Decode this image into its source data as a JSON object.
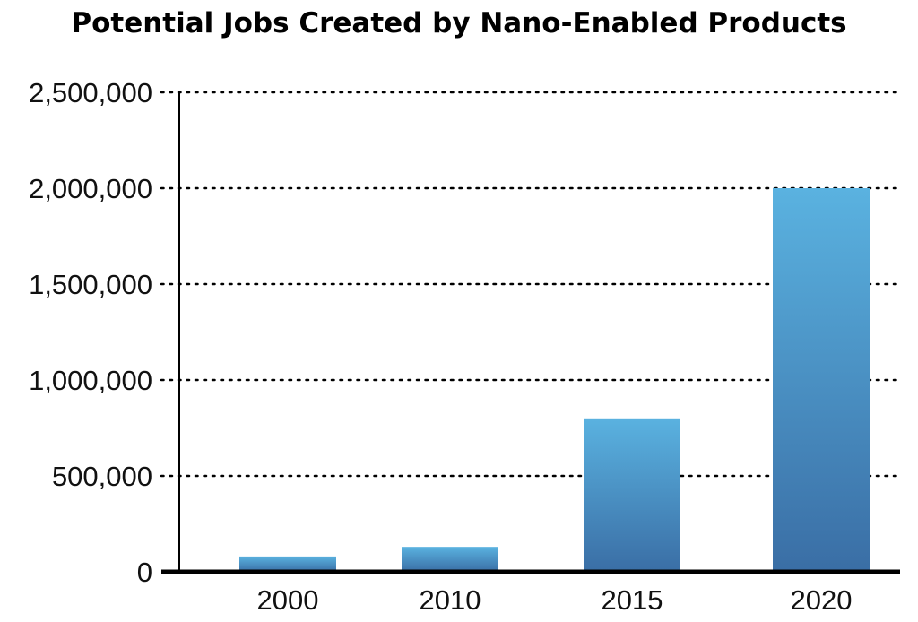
{
  "chart_data": {
    "type": "bar",
    "title": "Potential Jobs Created by Nano-Enabled Products",
    "xlabel": "",
    "ylabel": "",
    "categories": [
      "2000",
      "2010",
      "2015",
      "2020"
    ],
    "values": [
      80000,
      130000,
      800000,
      2000000
    ],
    "ylim": [
      0,
      2500000
    ],
    "yticks": [
      0,
      500000,
      1000000,
      1500000,
      2000000,
      2500000
    ],
    "ytick_labels": [
      "0",
      "500,000",
      "1,000,000",
      "1,500,000",
      "2,000,000",
      "2,500,000"
    ],
    "grid": "horizontal dotted",
    "legend": "none",
    "colors": {
      "bar_top": "#5ab2e0",
      "bar_bottom": "#3a6ea5",
      "axis": "#000000",
      "grid": "#000000",
      "text": "#111111"
    }
  }
}
